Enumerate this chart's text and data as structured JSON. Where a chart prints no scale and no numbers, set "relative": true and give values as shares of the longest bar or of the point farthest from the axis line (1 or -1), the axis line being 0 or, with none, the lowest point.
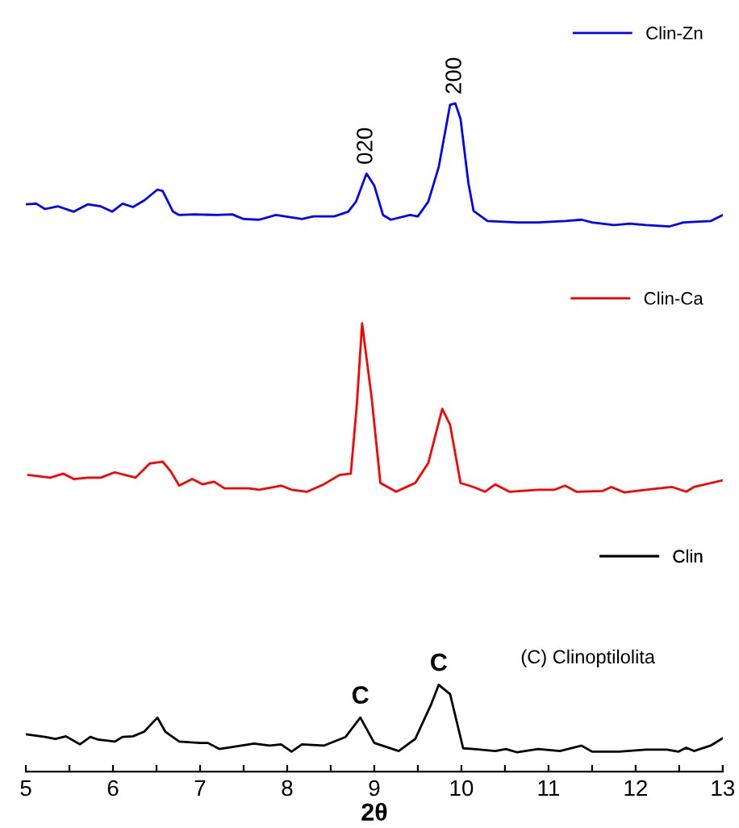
{
  "chart_data": {
    "type": "line",
    "relative": true,
    "xlabel": "2θ",
    "xlim": [
      5,
      13
    ],
    "xticks": [
      5,
      {
        "value": 5.5,
        "label": null
      },
      6,
      {
        "value": 6.5,
        "label": null
      },
      7,
      {
        "value": 7.5,
        "label": null
      },
      8,
      {
        "value": 8.5,
        "label": null
      },
      9,
      {
        "value": 9.5,
        "label": null
      },
      10,
      {
        "value": 10.5,
        "label": null
      },
      11,
      {
        "value": 11.5,
        "label": null
      },
      12,
      {
        "value": 12.5,
        "label": null
      },
      13
    ],
    "tick_labels": "x",
    "grid": false,
    "legend": "right",
    "marker": "none",
    "line_style": "solid",
    "series": [
      {
        "name": "Clin-Zn",
        "color": "#0000ff",
        "x": [
          5.0,
          5.12,
          5.22,
          5.37,
          5.55,
          5.71,
          5.86,
          5.99,
          6.11,
          6.23,
          6.36,
          6.51,
          6.57,
          6.69,
          6.76,
          6.94,
          7.19,
          7.37,
          7.5,
          7.68,
          7.87,
          8.17,
          8.3,
          8.54,
          8.7,
          8.79,
          8.91,
          9.0,
          9.1,
          9.19,
          9.41,
          9.5,
          9.62,
          9.74,
          9.87,
          9.93,
          9.99,
          10.08,
          10.14,
          10.3,
          10.64,
          10.88,
          11.19,
          11.38,
          11.5,
          11.75,
          11.93,
          12.12,
          12.39,
          12.55,
          12.86,
          13.0
        ],
        "values": [
          0.849,
          0.85,
          0.842,
          0.846,
          0.838,
          0.849,
          0.846,
          0.838,
          0.85,
          0.845,
          0.855,
          0.871,
          0.869,
          0.838,
          0.833,
          0.834,
          0.833,
          0.834,
          0.827,
          0.826,
          0.833,
          0.827,
          0.831,
          0.831,
          0.838,
          0.853,
          0.895,
          0.877,
          0.833,
          0.826,
          0.833,
          0.831,
          0.853,
          0.905,
          0.998,
          1.0,
          0.977,
          0.881,
          0.839,
          0.824,
          0.822,
          0.822,
          0.824,
          0.826,
          0.822,
          0.818,
          0.82,
          0.818,
          0.816,
          0.822,
          0.824,
          0.833
        ]
      },
      {
        "name": "Clin-Ca",
        "color": "#ff0000",
        "x": [
          5.03,
          5.28,
          5.43,
          5.55,
          5.71,
          5.86,
          6.02,
          6.26,
          6.42,
          6.57,
          6.66,
          6.76,
          6.91,
          7.03,
          7.16,
          7.28,
          7.56,
          7.68,
          7.93,
          8.05,
          8.23,
          8.42,
          8.6,
          8.73,
          8.8,
          8.86,
          8.91,
          8.97,
          9.07,
          9.25,
          9.47,
          9.62,
          9.78,
          9.87,
          9.99,
          10.14,
          10.27,
          10.39,
          10.55,
          10.88,
          11.07,
          11.19,
          11.32,
          11.62,
          11.72,
          11.87,
          12.12,
          12.42,
          12.58,
          12.67,
          13.0
        ],
        "values": [
          0.444,
          0.44,
          0.446,
          0.438,
          0.44,
          0.44,
          0.448,
          0.44,
          0.461,
          0.464,
          0.45,
          0.428,
          0.438,
          0.43,
          0.434,
          0.424,
          0.424,
          0.422,
          0.428,
          0.422,
          0.419,
          0.43,
          0.444,
          0.446,
          0.55,
          0.671,
          0.62,
          0.559,
          0.432,
          0.419,
          0.432,
          0.462,
          0.543,
          0.519,
          0.432,
          0.426,
          0.419,
          0.43,
          0.419,
          0.422,
          0.422,
          0.428,
          0.419,
          0.42,
          0.426,
          0.418,
          0.422,
          0.426,
          0.419,
          0.426,
          0.436
        ]
      },
      {
        "name": "Clin",
        "color": "#000000",
        "x": [
          5.0,
          5.22,
          5.34,
          5.46,
          5.62,
          5.74,
          5.83,
          6.02,
          6.11,
          6.23,
          6.36,
          6.51,
          6.6,
          6.76,
          7.0,
          7.09,
          7.22,
          7.37,
          7.62,
          7.8,
          7.93,
          8.05,
          8.17,
          8.42,
          8.67,
          8.84,
          9.0,
          9.28,
          9.47,
          9.65,
          9.74,
          9.87,
          10.02,
          10.14,
          10.39,
          10.51,
          10.64,
          10.88,
          11.13,
          11.38,
          11.5,
          11.81,
          12.12,
          12.36,
          12.49,
          12.58,
          12.67,
          12.86,
          13.0
        ],
        "values": [
          0.056,
          0.052,
          0.049,
          0.053,
          0.041,
          0.052,
          0.048,
          0.045,
          0.052,
          0.053,
          0.06,
          0.081,
          0.06,
          0.045,
          0.043,
          0.043,
          0.034,
          0.037,
          0.042,
          0.039,
          0.041,
          0.03,
          0.041,
          0.039,
          0.052,
          0.081,
          0.043,
          0.031,
          0.049,
          0.1,
          0.13,
          0.116,
          0.035,
          0.034,
          0.031,
          0.034,
          0.029,
          0.034,
          0.031,
          0.039,
          0.03,
          0.03,
          0.033,
          0.033,
          0.03,
          0.036,
          0.031,
          0.039,
          0.05
        ]
      }
    ],
    "annotations": [
      {
        "text": "020",
        "x": 8.91,
        "y": 0.895
      },
      {
        "text": "200",
        "x": 9.93,
        "y": 1.0
      },
      {
        "text": "C",
        "x": 8.84,
        "y": 0.081
      },
      {
        "text": "C",
        "x": 9.74,
        "y": 0.13
      },
      "(C) Clinoptilolita"
    ]
  }
}
